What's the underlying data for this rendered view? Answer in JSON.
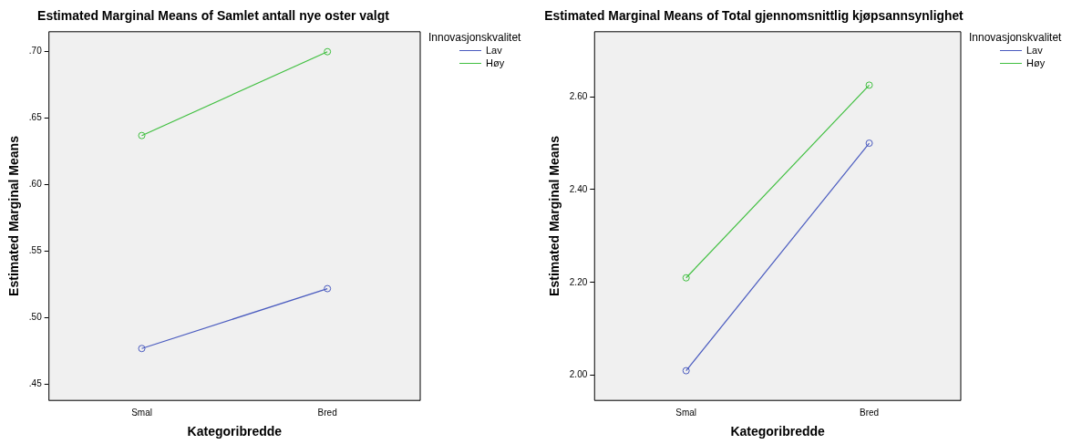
{
  "chart_data": [
    {
      "type": "line",
      "title": "Estimated Marginal Means of Samlet antall nye oster valgt",
      "xlabel": "Kategoribredde",
      "ylabel": "Estimated Marginal Means",
      "legend_title": "Innovasjonskvalitet",
      "legend": "top right",
      "marker": "circle",
      "categories": [
        "Smal",
        "Bred"
      ],
      "series": [
        {
          "name": "Lav",
          "color": "#4a5bbf",
          "values": [
            0.477,
            0.522
          ]
        },
        {
          "name": "Høy",
          "color": "#3fbf3f",
          "values": [
            0.637,
            0.7
          ]
        }
      ],
      "ylim": [
        0.438,
        0.715
      ],
      "yticks": [
        {
          "value": 0.45,
          "label": ".45"
        },
        {
          "value": 0.5,
          "label": ".50"
        },
        {
          "value": 0.55,
          "label": ".55"
        },
        {
          "value": 0.6,
          "label": ".60"
        },
        {
          "value": 0.65,
          "label": ".65"
        },
        {
          "value": 0.7,
          "label": ".70"
        }
      ]
    },
    {
      "type": "line",
      "title": "Estimated Marginal Means of Total gjennomsnittlig kjøpsannsynlighet",
      "xlabel": "Kategoribredde",
      "ylabel": "Estimated Marginal Means",
      "legend_title": "Innovasjonskvalitet",
      "legend": "top right",
      "marker": "circle",
      "categories": [
        "Smal",
        "Bred"
      ],
      "series": [
        {
          "name": "Lav",
          "color": "#4a5bbf",
          "values": [
            2.01,
            2.5
          ]
        },
        {
          "name": "Høy",
          "color": "#3fbf3f",
          "values": [
            2.21,
            2.625
          ]
        }
      ],
      "ylim": [
        1.946,
        2.74
      ],
      "yticks": [
        {
          "value": 2.0,
          "label": "2.00"
        },
        {
          "value": 2.2,
          "label": "2.20"
        },
        {
          "value": 2.4,
          "label": "2.40"
        },
        {
          "value": 2.6,
          "label": "2.60"
        }
      ]
    }
  ]
}
